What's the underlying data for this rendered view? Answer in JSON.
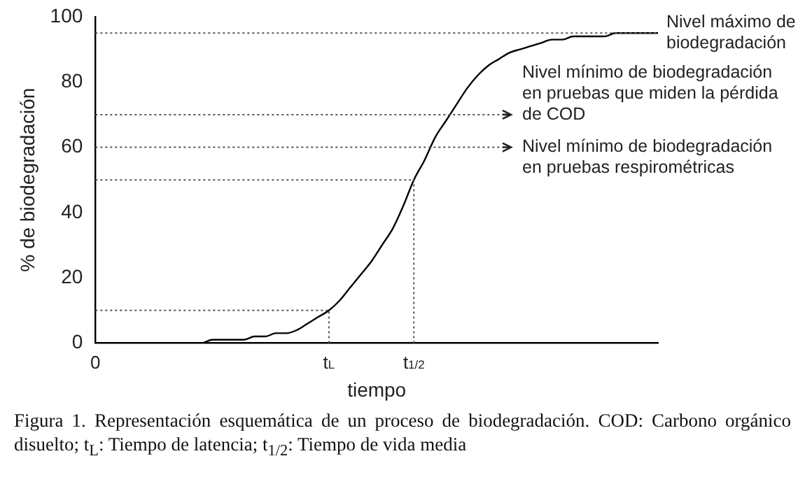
{
  "chart_data": {
    "type": "line",
    "ylabel": "% de biodegradación",
    "xlabel": "tiempo",
    "categories": [
      "0",
      null,
      null,
      null,
      null,
      null,
      null,
      null,
      null,
      null,
      null,
      null,
      null,
      null,
      null,
      null,
      null,
      null,
      null,
      null,
      null,
      null,
      "t$_{L}$",
      null,
      null,
      null,
      null,
      null,
      null,
      null,
      "t$_{1/2}$",
      null,
      null,
      null,
      null,
      null,
      null,
      null,
      null,
      null,
      null,
      null,
      null,
      null,
      null,
      null,
      null,
      null,
      null,
      null,
      null,
      null,
      null,
      null
    ],
    "series": [
      {
        "color": "#000000",
        "values": [
          null,
          null,
          null,
          null,
          0,
          0,
          0,
          0,
          0,
          0,
          0,
          1,
          1,
          1,
          1,
          2,
          2,
          3,
          3,
          4,
          6,
          8,
          10,
          13,
          17,
          21,
          25,
          30,
          35,
          42,
          50,
          56,
          63,
          68,
          73,
          78,
          82,
          85,
          87,
          89,
          90,
          91,
          92,
          93,
          93,
          94,
          94,
          94,
          94,
          95,
          95,
          95,
          95,
          95
        ]
      }
    ],
    "ylim": [
      0,
      100
    ],
    "yticks": [
      0,
      20,
      40,
      60,
      80,
      100
    ],
    "grid": false,
    "legend": false,
    "marker": "none",
    "ref_lines": [
      {
        "axis": "y",
        "value": 95,
        "label": "Nivel máximo de biodegradación",
        "line_style": "dotted",
        "color": "#555555"
      },
      {
        "axis": "y",
        "value": 70,
        "label": "Nivel mínimo de biodegradación en pruebas que miden la pérdida de COD",
        "line_style": "dotted",
        "color": "#555555"
      },
      {
        "axis": "y",
        "value": 60,
        "label": "Nivel mínimo de biodegradación en pruebas respirométricas",
        "line_style": "dotted",
        "color": "#555555"
      },
      {
        "axis": "y",
        "value": 50,
        "line_style": "dotted",
        "color": "#555555"
      },
      {
        "axis": "y",
        "value": 10,
        "line_style": "dotted",
        "color": "#555555"
      },
      {
        "axis": "x",
        "value": "t$_{L}$",
        "line_style": "dotted",
        "color": "#555555"
      },
      {
        "axis": "x",
        "value": "t$_{1/2}$",
        "line_style": "dotted",
        "color": "#555555"
      }
    ],
    "annotations": [
      "Figura 1. Representación esquemática de un proceso de biodegradación. COD: Carbono orgánico disuelto; t$_{L}$: Tiempo de latencia; t$_{1/2}$: Tiempo de vida media"
    ]
  }
}
